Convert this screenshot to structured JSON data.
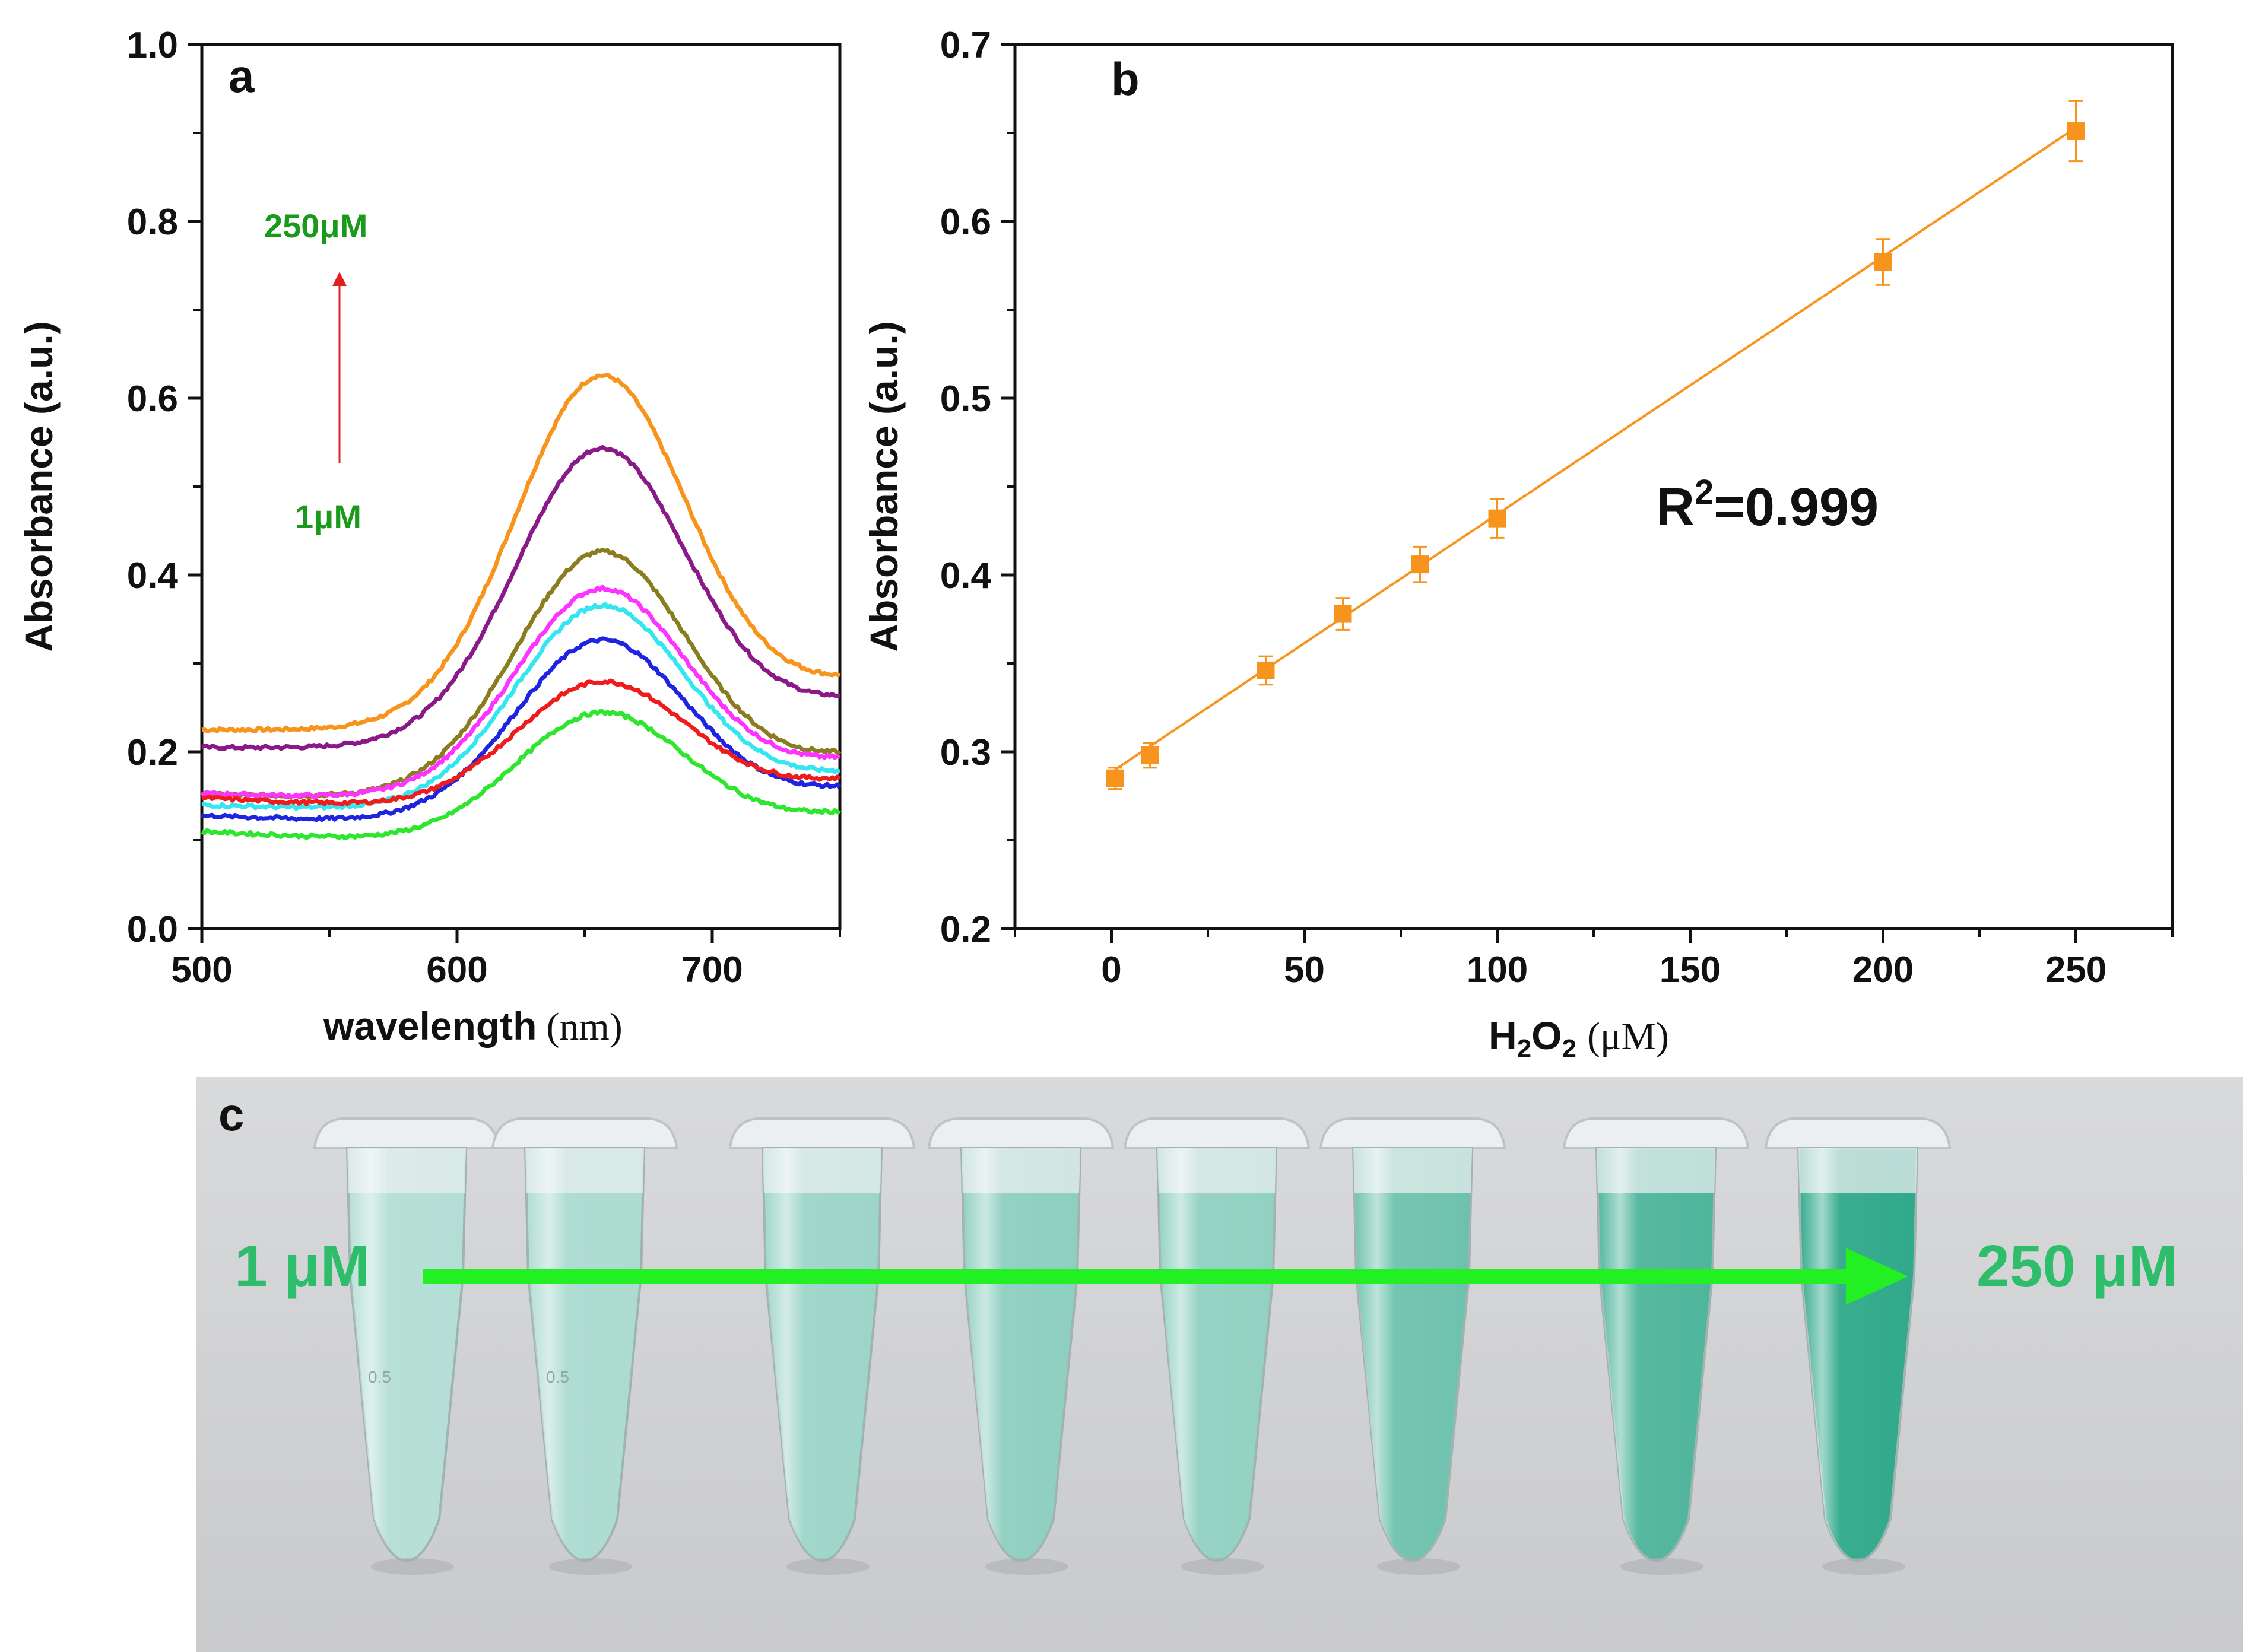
{
  "colors": {
    "orange": "#f7941d",
    "purple": "#8b1a89",
    "olive": "#8a7d1f",
    "magenta": "#ff33ff",
    "cyan": "#33e6f0",
    "blue": "#1f24e0",
    "red": "#f01c1c",
    "green": "#2ee62e",
    "label_green": "#1a9a1a",
    "arrow_red": "#e02020",
    "photo_green": "#2ebd6a",
    "photo_arrow": "#22f022",
    "photo_bg": "#d3d4d6"
  },
  "panel_a": {
    "letter": "a",
    "annotation_top": "250μM",
    "annotation_bottom": "1μM",
    "chart_data": {
      "type": "line",
      "title": "",
      "xlabel": "wavelength",
      "xlabel_unit": "(nm)",
      "ylabel": "Absorbance (a.u.)",
      "xlim": [
        500,
        750
      ],
      "ylim": [
        0.0,
        1.0
      ],
      "xticks": [
        500,
        600,
        700
      ],
      "xtick_labels": [
        "500",
        "600",
        "700"
      ],
      "yticks": [
        0.0,
        0.2,
        0.4,
        0.6,
        0.8,
        1.0
      ],
      "ytick_labels": [
        "0.0",
        "0.2",
        "0.4",
        "0.6",
        "0.8",
        "1.0"
      ],
      "series": [
        {
          "name": "curve-orange",
          "color": "orange",
          "base": 0.225,
          "peak": 0.642,
          "end": 0.28
        },
        {
          "name": "curve-purple",
          "color": "purple",
          "base": 0.205,
          "peak": 0.56,
          "end": 0.258
        },
        {
          "name": "curve-olive",
          "color": "olive",
          "base": 0.152,
          "peak": 0.443,
          "end": 0.195
        },
        {
          "name": "curve-magenta",
          "color": "magenta",
          "base": 0.153,
          "peak": 0.401,
          "end": 0.19
        },
        {
          "name": "curve-cyan",
          "color": "cyan",
          "base": 0.14,
          "peak": 0.382,
          "end": 0.175
        },
        {
          "name": "curve-blue",
          "color": "blue",
          "base": 0.128,
          "peak": 0.343,
          "end": 0.158
        },
        {
          "name": "curve-red",
          "color": "red",
          "base": 0.148,
          "peak": 0.296,
          "end": 0.168
        },
        {
          "name": "curve-green",
          "color": "green",
          "base": 0.11,
          "peak": 0.261,
          "end": 0.13
        }
      ]
    }
  },
  "panel_b": {
    "letter": "b",
    "r2_label": "R",
    "r2_sup": "2",
    "r2_value": "=0.999",
    "xlabel_main": "H",
    "xlabel_sub1": "2",
    "xlabel_mid": "O",
    "xlabel_sub2": "2",
    "xlabel_unit": "(μM)",
    "chart_data": {
      "type": "scatter",
      "title": "",
      "ylabel": "Absorbance (a.u.)",
      "xlim": [
        -25,
        275
      ],
      "ylim": [
        0.2,
        0.7
      ],
      "xticks": [
        0,
        50,
        100,
        150,
        200,
        250
      ],
      "xtick_labels": [
        "0",
        "50",
        "100",
        "150",
        "200",
        "250"
      ],
      "yticks": [
        0.2,
        0.3,
        0.4,
        0.5,
        0.6,
        0.7
      ],
      "ytick_labels": [
        "0.2",
        "0.3",
        "0.4",
        "0.5",
        "0.6",
        "0.7"
      ],
      "fit": {
        "x0": 1,
        "y0": 0.29,
        "x1": 250,
        "y1": 0.653
      },
      "points": [
        {
          "x": 1,
          "y": 0.285,
          "err": 0.006
        },
        {
          "x": 10,
          "y": 0.298,
          "err": 0.007
        },
        {
          "x": 40,
          "y": 0.346,
          "err": 0.008
        },
        {
          "x": 60,
          "y": 0.378,
          "err": 0.009
        },
        {
          "x": 80,
          "y": 0.406,
          "err": 0.01
        },
        {
          "x": 100,
          "y": 0.432,
          "err": 0.011
        },
        {
          "x": 200,
          "y": 0.577,
          "err": 0.013
        },
        {
          "x": 250,
          "y": 0.651,
          "err": 0.017
        }
      ]
    }
  },
  "panel_c": {
    "letter": "c",
    "label_left": "1 μM",
    "label_right": "250 μM",
    "tube_intensity": [
      0.18,
      0.22,
      0.3,
      0.38,
      0.36,
      0.55,
      0.72,
      0.88
    ],
    "tube_marking": "0.5"
  }
}
